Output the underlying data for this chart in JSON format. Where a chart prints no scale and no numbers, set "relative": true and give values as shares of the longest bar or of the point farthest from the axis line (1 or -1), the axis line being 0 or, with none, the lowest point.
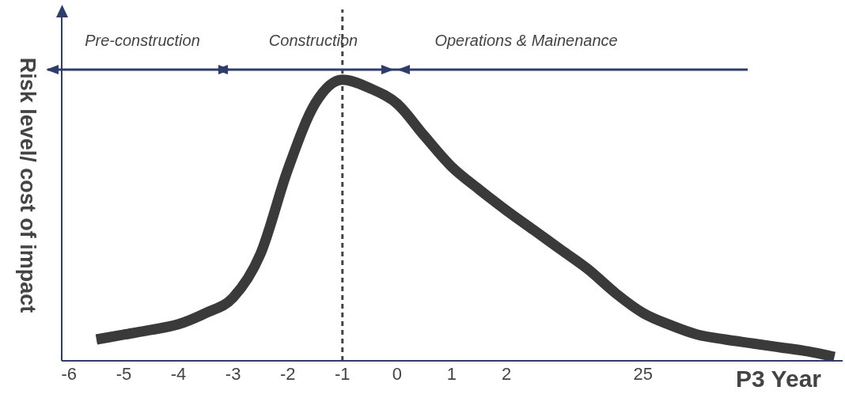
{
  "chart_data": {
    "type": "line",
    "relative": true,
    "xlabel": "P3 Year",
    "ylabel": "Risk level/ cost of impact",
    "categories": [
      "-6",
      null,
      "-5",
      null,
      "-4",
      null,
      "-3",
      null,
      "-2",
      null,
      "-1",
      null,
      "0",
      null,
      "1",
      null,
      "2",
      null,
      null,
      null,
      null,
      "25",
      null,
      null,
      null,
      null,
      null,
      null,
      null
    ],
    "series": [
      {
        "color": "#3a3a3a",
        "values": [
          null,
          0.076,
          0.093,
          0.11,
          0.13,
          0.17,
          0.225,
          0.38,
          0.68,
          0.915,
          1.0,
          0.97,
          0.915,
          0.8,
          0.69,
          0.61,
          0.535,
          0.465,
          0.395,
          0.325,
          0.24,
          0.17,
          0.127,
          0.093,
          0.076,
          0.062,
          0.048,
          0.034,
          0.014
        ]
      }
    ],
    "ref_lines": [
      {
        "axis": "x",
        "value": "-1",
        "color": "#444444",
        "line_style": "dashed"
      }
    ],
    "annotations": [
      "Pre-construction",
      "Construction",
      "Operations & Mainenance"
    ],
    "marker": "none",
    "line_style": "solid"
  }
}
